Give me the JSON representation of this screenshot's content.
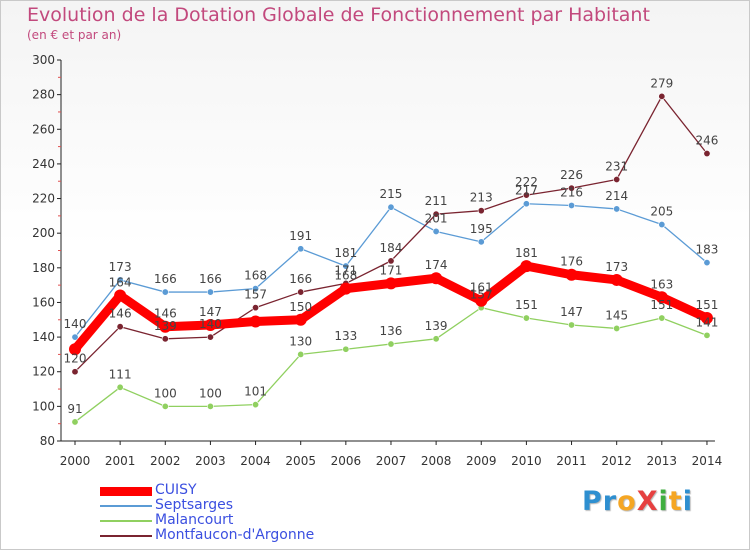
{
  "chart_data": {
    "type": "line",
    "title": "Evolution de la Dotation Globale de Fonctionnement par Habitant",
    "subtitle": "(en € et par an)",
    "xlabel": "",
    "ylabel": "",
    "x": [
      "2000",
      "2001",
      "2002",
      "2003",
      "2004",
      "2005",
      "2006",
      "2007",
      "2008",
      "2009",
      "2010",
      "2011",
      "2012",
      "2013",
      "2014"
    ],
    "ylim": [
      80,
      300
    ],
    "yticks": [
      "80",
      "100",
      "120",
      "140",
      "160",
      "180",
      "200",
      "220",
      "240",
      "260",
      "280",
      "300"
    ],
    "grid": false,
    "legend": "bottom-left",
    "series": [
      {
        "name": "CUISY",
        "color": "#ff0000",
        "values": [
          133,
          164,
          146,
          147,
          149,
          150,
          168,
          171,
          174,
          161,
          181,
          176,
          173,
          163,
          151
        ],
        "labels": [
          "",
          "164",
          "146",
          "147",
          "",
          "150",
          "168",
          "171",
          "174",
          "161",
          "181",
          "176",
          "173",
          "163",
          "151"
        ]
      },
      {
        "name": "Septsarges",
        "color": "#5b9bd5",
        "values": [
          140,
          173,
          166,
          166,
          168,
          191,
          181,
          215,
          201,
          195,
          217,
          216,
          214,
          205,
          183
        ],
        "labels": [
          "140",
          "173",
          "166",
          "166",
          "168",
          "191",
          "181",
          "215",
          "201",
          "195",
          "217",
          "216",
          "214",
          "205",
          "183"
        ]
      },
      {
        "name": "Malancourt",
        "color": "#90d060",
        "values": [
          91,
          111,
          100,
          100,
          101,
          130,
          133,
          136,
          139,
          157,
          151,
          147,
          145,
          151,
          141
        ],
        "labels": [
          "91",
          "111",
          "100",
          "100",
          "101",
          "130",
          "133",
          "136",
          "139",
          "157",
          "151",
          "147",
          "145",
          "151",
          "141"
        ]
      },
      {
        "name": "Montfaucon-d'Argonne",
        "color": "#7a2430",
        "values": [
          120,
          146,
          139,
          140,
          157,
          166,
          171,
          184,
          211,
          213,
          222,
          226,
          231,
          279,
          246
        ],
        "labels": [
          "120",
          "146",
          "139",
          "140",
          "157",
          "166",
          "171",
          "184",
          "211",
          "213",
          "222",
          "226",
          "231",
          "279",
          "246"
        ]
      }
    ]
  },
  "legend": {
    "items": [
      {
        "name": "CUISY",
        "color": "#ff0000",
        "text_color": "#3b4fe0"
      },
      {
        "name": "Septsarges",
        "color": "#5b9bd5",
        "text_color": "#3b4fe0"
      },
      {
        "name": "Malancourt",
        "color": "#90d060",
        "text_color": "#3b4fe0"
      },
      {
        "name": "Montfaucon-d'Argonne",
        "color": "#7a2430",
        "text_color": "#3b4fe0"
      }
    ]
  },
  "logo": {
    "text": "ProXiti",
    "letters": [
      {
        "ch": "P",
        "color": "#2e8fd0"
      },
      {
        "ch": "r",
        "color": "#2e8fd0"
      },
      {
        "ch": "o",
        "color": "#f5a623"
      },
      {
        "ch": "X",
        "color": "#e64040"
      },
      {
        "ch": "i",
        "color": "#3fae3f"
      },
      {
        "ch": "t",
        "color": "#f5a623"
      },
      {
        "ch": "i",
        "color": "#2e8fd0"
      }
    ]
  }
}
